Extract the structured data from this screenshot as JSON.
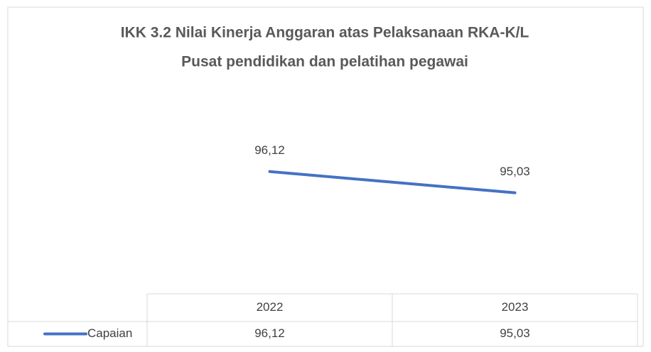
{
  "chart_data": {
    "type": "line",
    "title": [
      "IKK 3.2 Nilai Kinerja Anggaran atas Pelaksanaan RKA-K/L",
      "Pusat pendidikan dan pelatihan pegawai"
    ],
    "categories": [
      "2022",
      "2023"
    ],
    "series": [
      {
        "name": "Capaian",
        "color": "#4472c4",
        "values": [
          96.12,
          95.03
        ],
        "value_labels": [
          "96,12",
          "95,03"
        ]
      }
    ],
    "ylim": [
      90,
      100
    ],
    "grid": false
  }
}
